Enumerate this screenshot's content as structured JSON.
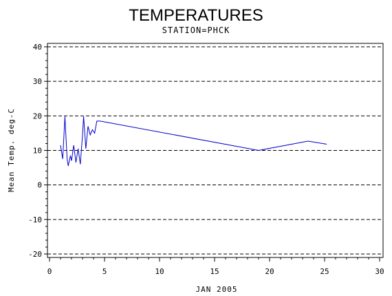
{
  "chart_data": {
    "type": "line",
    "title": "TEMPERATURES",
    "subtitle": "STATION=PHCK",
    "xlabel": "JAN 2005",
    "ylabel": "Mean Temp. deg-C",
    "xlim": [
      0,
      30
    ],
    "ylim": [
      -20,
      40
    ],
    "xticks": [
      0,
      5,
      10,
      15,
      20,
      25,
      30
    ],
    "yticks": [
      -20,
      -10,
      0,
      10,
      20,
      30,
      40
    ],
    "grid": "horizontal dashed",
    "line_color": "#0000cc",
    "series": [
      {
        "x": [
          1.0,
          1.2,
          1.4,
          1.6,
          1.7,
          1.9,
          2.0,
          2.2,
          2.4,
          2.6,
          2.8,
          3.0,
          3.1,
          3.3,
          3.5,
          3.7,
          3.9,
          4.1,
          4.3,
          4.5,
          4.6,
          19.0,
          23.5,
          25.2
        ],
        "y": [
          11.5,
          7.5,
          19.8,
          7.5,
          5.5,
          8.5,
          7.0,
          11.5,
          6.5,
          10.5,
          6.0,
          14.5,
          19.8,
          10.5,
          17.0,
          14.5,
          16.0,
          15.0,
          18.5,
          18.5,
          18.5,
          10.0,
          12.7,
          11.8
        ]
      }
    ]
  }
}
